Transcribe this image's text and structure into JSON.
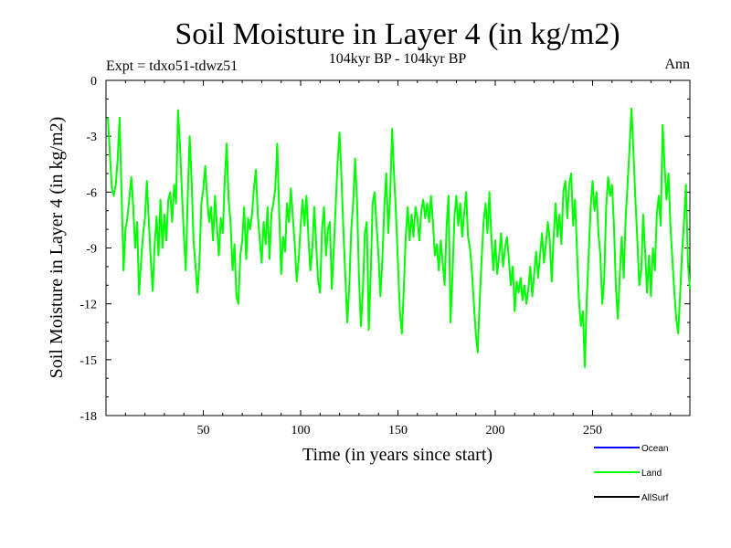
{
  "chart_data": {
    "type": "line",
    "title": "Soil Moisture in Layer 4 (in kg/m2)",
    "subtitle": "104kyr BP - 104kyr BP",
    "experiment_label": "Expt = tdxo51-tdwz51",
    "season_label": "Ann",
    "xlabel": "Time (in years since start)",
    "ylabel": "Soil Moisture in Layer 4 (in kg/m2)",
    "xlim": [
      0,
      300
    ],
    "ylim": [
      -18,
      0
    ],
    "xticks": [
      50,
      100,
      150,
      200,
      250
    ],
    "yticks": [
      0,
      -3,
      -6,
      -9,
      -12,
      -15,
      -18
    ],
    "series": [
      {
        "name": "Ocean",
        "color": "#0000ff",
        "points": []
      },
      {
        "name": "Land",
        "color": "#00ff00",
        "points": [
          [
            1,
            -2.0
          ],
          [
            2,
            -4.0
          ],
          [
            3,
            -5.8
          ],
          [
            4,
            -6.2
          ],
          [
            5,
            -5.6
          ],
          [
            6,
            -4.2
          ],
          [
            7,
            -2.0
          ],
          [
            8,
            -6.0
          ],
          [
            9,
            -10.2
          ],
          [
            10,
            -8.0
          ],
          [
            11,
            -7.4
          ],
          [
            12,
            -6.3
          ],
          [
            13,
            -5.2
          ],
          [
            14,
            -6.8
          ],
          [
            15,
            -9.0
          ],
          [
            16,
            -7.6
          ],
          [
            17,
            -11.5
          ],
          [
            18,
            -9.8
          ],
          [
            19,
            -8.3
          ],
          [
            20,
            -7.4
          ],
          [
            21,
            -5.4
          ],
          [
            22,
            -7.6
          ],
          [
            23,
            -9.6
          ],
          [
            24,
            -11.3
          ],
          [
            25,
            -8.8
          ],
          [
            26,
            -7.3
          ],
          [
            27,
            -9.4
          ],
          [
            28,
            -6.4
          ],
          [
            29,
            -9.0
          ],
          [
            30,
            -7.2
          ],
          [
            31,
            -8.6
          ],
          [
            32,
            -6.4
          ],
          [
            33,
            -6.0
          ],
          [
            34,
            -7.6
          ],
          [
            35,
            -5.6
          ],
          [
            36,
            -6.6
          ],
          [
            37,
            -1.6
          ],
          [
            38,
            -3.4
          ],
          [
            39,
            -6.0
          ],
          [
            40,
            -8.3
          ],
          [
            41,
            -10.2
          ],
          [
            42,
            -6.2
          ],
          [
            43,
            -3.0
          ],
          [
            44,
            -5.4
          ],
          [
            45,
            -8.6
          ],
          [
            46,
            -10.0
          ],
          [
            47,
            -11.4
          ],
          [
            48,
            -9.8
          ],
          [
            49,
            -6.6
          ],
          [
            50,
            -5.8
          ],
          [
            51,
            -4.6
          ],
          [
            52,
            -6.4
          ],
          [
            53,
            -7.6
          ],
          [
            54,
            -6.8
          ],
          [
            55,
            -8.6
          ],
          [
            56,
            -6.2
          ],
          [
            57,
            -7.8
          ],
          [
            58,
            -9.4
          ],
          [
            59,
            -7.4
          ],
          [
            60,
            -8.2
          ],
          [
            61,
            -5.4
          ],
          [
            62,
            -3.4
          ],
          [
            63,
            -6.4
          ],
          [
            64,
            -7.6
          ],
          [
            65,
            -10.2
          ],
          [
            66,
            -8.8
          ],
          [
            67,
            -11.6
          ],
          [
            68,
            -12.0
          ],
          [
            69,
            -9.4
          ],
          [
            70,
            -8.6
          ],
          [
            71,
            -6.8
          ],
          [
            72,
            -9.6
          ],
          [
            73,
            -7.4
          ],
          [
            74,
            -8.0
          ],
          [
            75,
            -7.2
          ],
          [
            76,
            -5.8
          ],
          [
            77,
            -4.8
          ],
          [
            78,
            -7.2
          ],
          [
            79,
            -8.6
          ],
          [
            80,
            -9.8
          ],
          [
            81,
            -7.6
          ],
          [
            82,
            -8.8
          ],
          [
            83,
            -6.8
          ],
          [
            84,
            -9.6
          ],
          [
            85,
            -7.2
          ],
          [
            86,
            -6.6
          ],
          [
            87,
            -5.8
          ],
          [
            88,
            -3.4
          ],
          [
            89,
            -7.2
          ],
          [
            90,
            -10.4
          ],
          [
            91,
            -8.4
          ],
          [
            92,
            -9.2
          ],
          [
            93,
            -6.6
          ],
          [
            94,
            -7.6
          ],
          [
            95,
            -5.8
          ],
          [
            96,
            -7.4
          ],
          [
            97,
            -8.8
          ],
          [
            98,
            -10.8
          ],
          [
            99,
            -9.6
          ],
          [
            100,
            -7.8
          ],
          [
            101,
            -6.4
          ],
          [
            102,
            -7.8
          ],
          [
            103,
            -6.2
          ],
          [
            104,
            -8.4
          ],
          [
            105,
            -10.2
          ],
          [
            106,
            -9.0
          ],
          [
            107,
            -6.8
          ],
          [
            108,
            -8.8
          ],
          [
            109,
            -10.8
          ],
          [
            110,
            -11.4
          ],
          [
            111,
            -8.0
          ],
          [
            112,
            -6.8
          ],
          [
            113,
            -9.4
          ],
          [
            114,
            -8.0
          ],
          [
            115,
            -7.6
          ],
          [
            116,
            -11.2
          ],
          [
            117,
            -9.2
          ],
          [
            118,
            -6.8
          ],
          [
            119,
            -4.4
          ],
          [
            120,
            -2.8
          ],
          [
            121,
            -5.2
          ],
          [
            122,
            -8.2
          ],
          [
            123,
            -10.6
          ],
          [
            124,
            -13.0
          ],
          [
            125,
            -11.0
          ],
          [
            126,
            -8.0
          ],
          [
            127,
            -6.6
          ],
          [
            128,
            -4.2
          ],
          [
            129,
            -6.6
          ],
          [
            130,
            -10.6
          ],
          [
            131,
            -13.2
          ],
          [
            132,
            -11.2
          ],
          [
            133,
            -8.2
          ],
          [
            134,
            -7.6
          ],
          [
            135,
            -13.4
          ],
          [
            136,
            -10.4
          ],
          [
            137,
            -6.6
          ],
          [
            138,
            -6.0
          ],
          [
            139,
            -7.8
          ],
          [
            140,
            -9.4
          ],
          [
            141,
            -11.6
          ],
          [
            142,
            -9.6
          ],
          [
            143,
            -6.8
          ],
          [
            144,
            -5.0
          ],
          [
            145,
            -8.2
          ],
          [
            146,
            -6.2
          ],
          [
            147,
            -2.6
          ],
          [
            148,
            -5.0
          ],
          [
            149,
            -7.2
          ],
          [
            150,
            -9.8
          ],
          [
            151,
            -12.4
          ],
          [
            152,
            -13.6
          ],
          [
            153,
            -11.2
          ],
          [
            154,
            -8.4
          ],
          [
            155,
            -6.8
          ],
          [
            156,
            -8.6
          ],
          [
            157,
            -7.2
          ],
          [
            158,
            -8.4
          ],
          [
            159,
            -6.8
          ],
          [
            160,
            -7.4
          ],
          [
            161,
            -8.6
          ],
          [
            162,
            -7.0
          ],
          [
            163,
            -6.4
          ],
          [
            164,
            -7.4
          ],
          [
            165,
            -6.6
          ],
          [
            166,
            -7.6
          ],
          [
            167,
            -6.2
          ],
          [
            168,
            -7.6
          ],
          [
            169,
            -9.4
          ],
          [
            170,
            -8.8
          ],
          [
            171,
            -10.2
          ],
          [
            172,
            -8.6
          ],
          [
            173,
            -9.8
          ],
          [
            174,
            -11.0
          ],
          [
            175,
            -7.8
          ],
          [
            176,
            -6.2
          ],
          [
            177,
            -13.0
          ],
          [
            178,
            -10.6
          ],
          [
            179,
            -7.4
          ],
          [
            180,
            -6.2
          ],
          [
            181,
            -7.8
          ],
          [
            182,
            -6.6
          ],
          [
            183,
            -8.4
          ],
          [
            184,
            -7.2
          ],
          [
            185,
            -6.0
          ],
          [
            186,
            -8.4
          ],
          [
            187,
            -9.0
          ],
          [
            188,
            -10.2
          ],
          [
            189,
            -12.0
          ],
          [
            190,
            -13.6
          ],
          [
            191,
            -14.6
          ],
          [
            192,
            -11.8
          ],
          [
            193,
            -9.6
          ],
          [
            194,
            -7.6
          ],
          [
            195,
            -6.6
          ],
          [
            196,
            -8.2
          ],
          [
            197,
            -6.0
          ],
          [
            198,
            -8.4
          ],
          [
            199,
            -10.2
          ],
          [
            200,
            -8.6
          ],
          [
            201,
            -10.4
          ],
          [
            202,
            -9.4
          ],
          [
            203,
            -8.2
          ],
          [
            204,
            -10.0
          ],
          [
            205,
            -9.0
          ],
          [
            206,
            -8.4
          ],
          [
            207,
            -9.6
          ],
          [
            208,
            -11.0
          ],
          [
            209,
            -10.0
          ],
          [
            210,
            -12.4
          ],
          [
            211,
            -10.8
          ],
          [
            212,
            -11.4
          ],
          [
            213,
            -10.6
          ],
          [
            214,
            -11.8
          ],
          [
            215,
            -11.0
          ],
          [
            216,
            -12.0
          ],
          [
            217,
            -11.2
          ],
          [
            218,
            -10.0
          ],
          [
            219,
            -11.6
          ],
          [
            220,
            -10.4
          ],
          [
            221,
            -9.2
          ],
          [
            222,
            -10.6
          ],
          [
            223,
            -9.4
          ],
          [
            224,
            -8.2
          ],
          [
            225,
            -9.8
          ],
          [
            226,
            -8.8
          ],
          [
            227,
            -7.6
          ],
          [
            228,
            -8.6
          ],
          [
            229,
            -10.8
          ],
          [
            230,
            -8.4
          ],
          [
            231,
            -6.6
          ],
          [
            232,
            -8.4
          ],
          [
            233,
            -7.2
          ],
          [
            234,
            -8.8
          ],
          [
            235,
            -6.0
          ],
          [
            236,
            -5.4
          ],
          [
            237,
            -7.4
          ],
          [
            238,
            -5.6
          ],
          [
            239,
            -5.0
          ],
          [
            240,
            -7.8
          ],
          [
            241,
            -6.4
          ],
          [
            242,
            -9.2
          ],
          [
            243,
            -11.8
          ],
          [
            244,
            -13.2
          ],
          [
            245,
            -12.4
          ],
          [
            246,
            -15.4
          ],
          [
            247,
            -11.8
          ],
          [
            248,
            -9.4
          ],
          [
            249,
            -6.8
          ],
          [
            250,
            -5.4
          ],
          [
            251,
            -7.0
          ],
          [
            252,
            -6.0
          ],
          [
            253,
            -8.2
          ],
          [
            254,
            -9.4
          ],
          [
            255,
            -12.0
          ],
          [
            256,
            -10.6
          ],
          [
            257,
            -6.8
          ],
          [
            258,
            -5.2
          ],
          [
            259,
            -6.2
          ],
          [
            260,
            -5.6
          ],
          [
            261,
            -7.8
          ],
          [
            262,
            -11.2
          ],
          [
            263,
            -12.8
          ],
          [
            264,
            -10.4
          ],
          [
            265,
            -8.4
          ],
          [
            266,
            -10.6
          ],
          [
            267,
            -7.4
          ],
          [
            268,
            -5.6
          ],
          [
            269,
            -3.6
          ],
          [
            270,
            -1.5
          ],
          [
            271,
            -3.8
          ],
          [
            272,
            -6.4
          ],
          [
            273,
            -8.6
          ],
          [
            274,
            -11.0
          ],
          [
            275,
            -10.2
          ],
          [
            276,
            -7.2
          ],
          [
            277,
            -9.2
          ],
          [
            278,
            -11.4
          ],
          [
            279,
            -9.4
          ],
          [
            280,
            -11.6
          ],
          [
            281,
            -9.0
          ],
          [
            282,
            -10.2
          ],
          [
            283,
            -7.2
          ],
          [
            284,
            -6.2
          ],
          [
            285,
            -7.8
          ],
          [
            286,
            -2.4
          ],
          [
            287,
            -4.6
          ],
          [
            288,
            -6.4
          ],
          [
            289,
            -5.0
          ],
          [
            290,
            -7.8
          ],
          [
            291,
            -9.6
          ],
          [
            292,
            -11.4
          ],
          [
            293,
            -12.8
          ],
          [
            294,
            -13.6
          ],
          [
            295,
            -11.4
          ],
          [
            296,
            -9.2
          ],
          [
            297,
            -7.6
          ],
          [
            298,
            -5.6
          ],
          [
            299,
            -9.8
          ],
          [
            300,
            -11.2
          ]
        ]
      },
      {
        "name": "AllSurf",
        "color": "#000000",
        "points": []
      }
    ]
  }
}
